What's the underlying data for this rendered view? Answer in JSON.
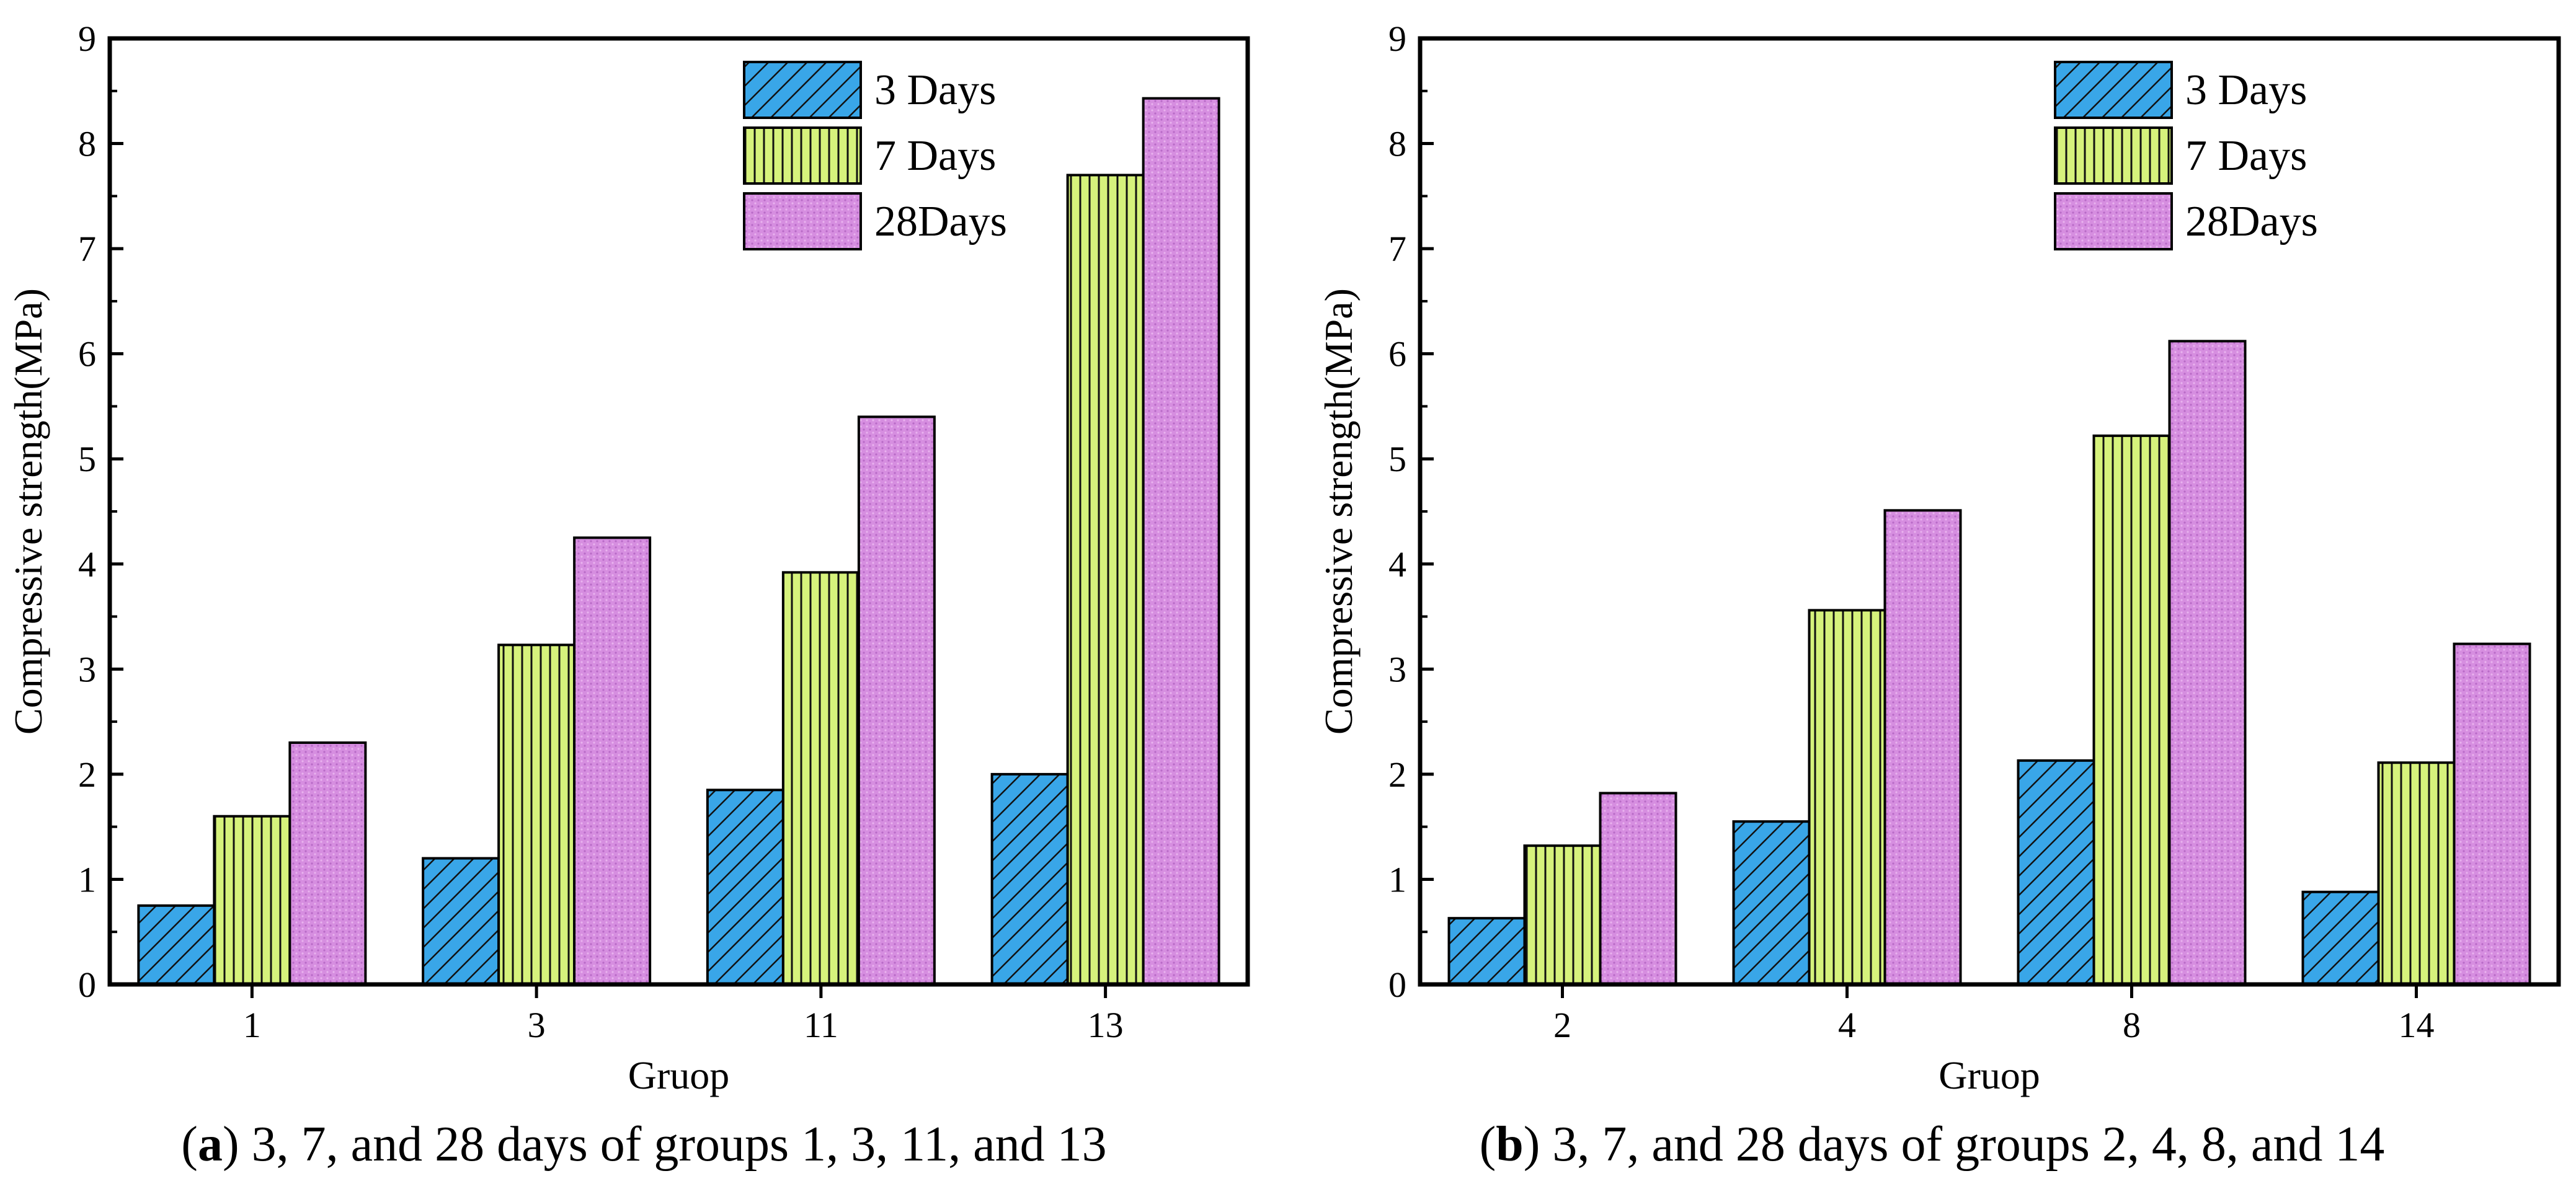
{
  "colors": {
    "series_3": "#39a6e8",
    "series_7": "#d6f27c",
    "series_28": "#d68ee0",
    "axis": "#000000"
  },
  "chart_data": [
    {
      "type": "bar",
      "panel": "a",
      "categories": [
        "1",
        "3",
        "11",
        "13"
      ],
      "series": [
        {
          "name": "3 Days",
          "values": [
            0.75,
            1.2,
            1.85,
            2.0
          ],
          "pattern": "diagonal-hatch"
        },
        {
          "name": "7 Days",
          "values": [
            1.6,
            3.23,
            3.92,
            7.7
          ],
          "pattern": "vertical-lines"
        },
        {
          "name": "28Days",
          "values": [
            2.3,
            4.25,
            5.4,
            8.43
          ],
          "pattern": "dots"
        }
      ],
      "xlabel": "Gruop",
      "ylabel": "Compressive strength(MPa)",
      "ylim": [
        0,
        9
      ],
      "yticks": [
        0,
        1,
        2,
        3,
        4,
        5,
        6,
        7,
        8,
        9
      ],
      "legend": "top-right",
      "caption_label": "a",
      "caption_text": "3, 7, and 28 days of groups 1, 3, 11, and 13"
    },
    {
      "type": "bar",
      "panel": "b",
      "categories": [
        "2",
        "4",
        "8",
        "14"
      ],
      "series": [
        {
          "name": "3 Days",
          "values": [
            0.63,
            1.55,
            2.13,
            0.88
          ],
          "pattern": "diagonal-hatch"
        },
        {
          "name": "7 Days",
          "values": [
            1.32,
            3.56,
            5.22,
            2.11
          ],
          "pattern": "vertical-lines"
        },
        {
          "name": "28Days",
          "values": [
            1.82,
            4.51,
            6.12,
            3.24
          ],
          "pattern": "dots"
        }
      ],
      "xlabel": "Gruop",
      "ylabel": "Compressive strength(MPa)",
      "ylim": [
        0,
        9
      ],
      "yticks": [
        0,
        1,
        2,
        3,
        4,
        5,
        6,
        7,
        8,
        9
      ],
      "legend": "top-right",
      "caption_label": "b",
      "caption_text": "3, 7, and 28 days of groups 2, 4, 8, and 14"
    }
  ]
}
